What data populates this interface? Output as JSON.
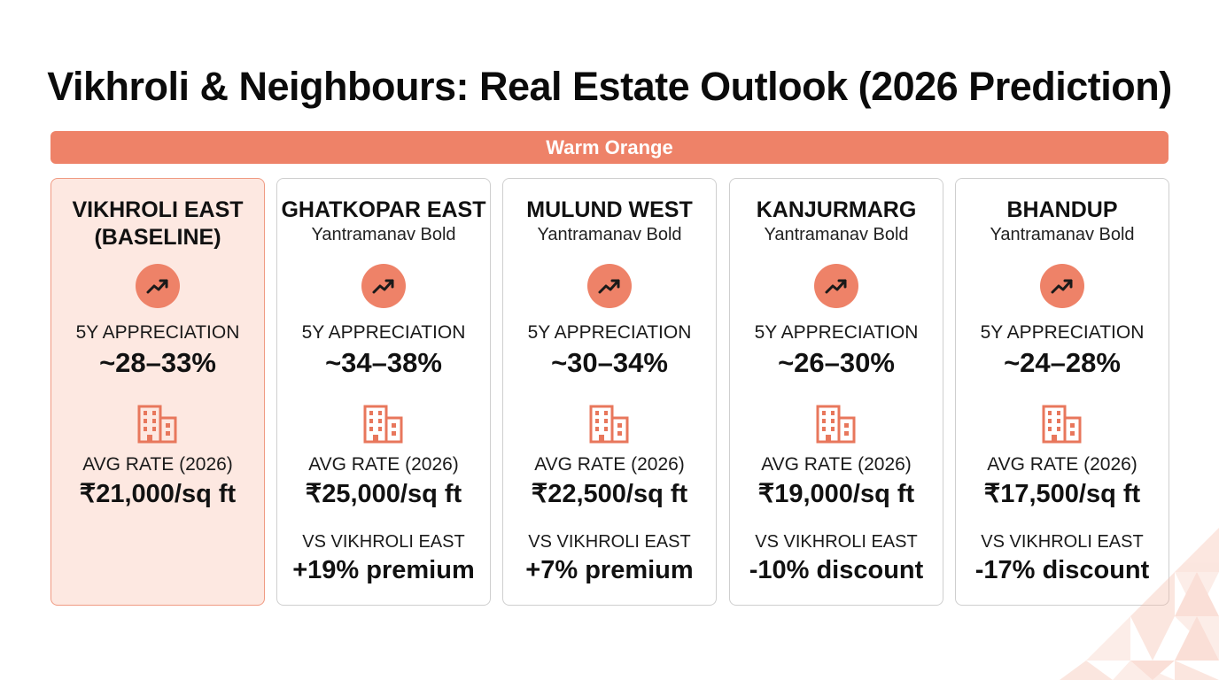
{
  "title": "Vikhroli & Neighbours: Real Estate Outlook (2026 Prediction)",
  "banner": "Warm Orange",
  "colors": {
    "accent": "#ee8268",
    "baseline_bg": "#fde8e1"
  },
  "icons": {
    "trend": "trending-up-icon",
    "building": "building-icon"
  },
  "labels": {
    "appreciation": "5Y APPRECIATION",
    "rate": "AVG RATE (2026)",
    "vs": "VS VIKHROLI EAST"
  },
  "cards": [
    {
      "name": "VIKHROLI EAST (BASELINE)",
      "sub": "",
      "appreciation": "~28–33%",
      "rate": "₹21,000/sq ft",
      "comparison": ""
    },
    {
      "name": "GHATKOPAR EAST",
      "sub": "Yantramanav Bold",
      "appreciation": "~34–38%",
      "rate": "₹25,000/sq ft",
      "comparison": "+19% premium"
    },
    {
      "name": "MULUND WEST",
      "sub": "Yantramanav Bold",
      "appreciation": "~30–34%",
      "rate": "₹22,500/sq ft",
      "comparison": "+7% premium"
    },
    {
      "name": "KANJURMARG",
      "sub": "Yantramanav Bold",
      "appreciation": "~26–30%",
      "rate": "₹19,000/sq ft",
      "comparison": "-10% discount"
    },
    {
      "name": "BHANDUP",
      "sub": "Yantramanav Bold",
      "appreciation": "~24–28%",
      "rate": "₹17,500/sq ft",
      "comparison": "-17% discount"
    }
  ]
}
